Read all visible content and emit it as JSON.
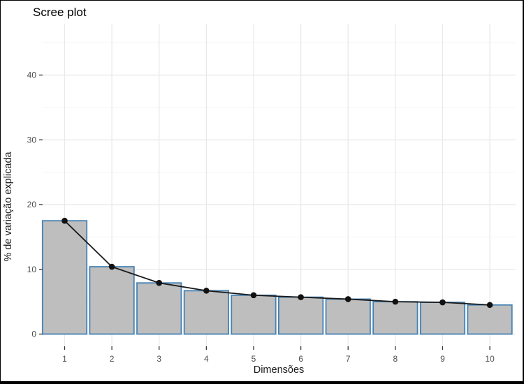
{
  "window": {
    "background": "#ffffff",
    "border_color": "#000000"
  },
  "chart_data": {
    "type": "bar",
    "overlay": "line-with-points",
    "title": "Scree plot",
    "xlabel": "Dimensões",
    "ylabel": "% de variação explicada",
    "categories": [
      "1",
      "2",
      "3",
      "4",
      "5",
      "6",
      "7",
      "8",
      "9",
      "10"
    ],
    "values": [
      17.5,
      10.4,
      7.9,
      6.7,
      6.0,
      5.7,
      5.4,
      5.0,
      4.9,
      4.5
    ],
    "y_ticks": [
      0,
      10,
      20,
      30,
      40
    ],
    "y_minor_ticks": [
      5,
      15,
      25,
      35,
      45
    ],
    "ylim": [
      0,
      47
    ],
    "grid": true,
    "legend": "none",
    "colors": {
      "bar_fill": "#bebebe",
      "bar_stroke": "#4682b4",
      "line": "#1a1a1a",
      "point": "#111111",
      "grid_major": "#e8e8e8",
      "grid_minor": "#f4f4f4",
      "tick_mark": "#333333",
      "tick_label": "#4d4d4d",
      "axis_title": "#1a1a1a",
      "title": "#000000"
    }
  }
}
